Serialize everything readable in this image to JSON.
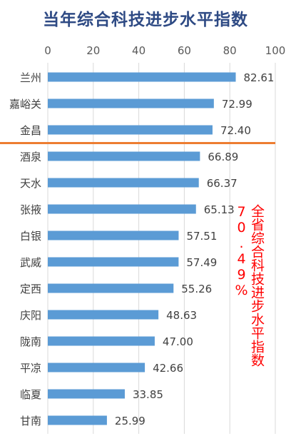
{
  "chart_data": {
    "type": "bar",
    "orientation": "horizontal",
    "title": "当年综合科技进步水平指数",
    "categories": [
      "兰州",
      "嘉峪关",
      "金昌",
      "酒泉",
      "天水",
      "张掖",
      "白银",
      "武威",
      "定西",
      "庆阳",
      "陇南",
      "平凉",
      "临夏",
      "甘南"
    ],
    "values": [
      82.61,
      72.99,
      72.4,
      66.89,
      66.37,
      65.13,
      57.51,
      57.49,
      55.26,
      48.63,
      47.0,
      42.66,
      33.85,
      25.99
    ],
    "value_labels": [
      "82.61",
      "72.99",
      "72.40",
      "66.89",
      "66.37",
      "65.13",
      "57.51",
      "57.49",
      "55.26",
      "48.63",
      "47.00",
      "42.66",
      "33.85",
      "25.99"
    ],
    "xlim": [
      0,
      100
    ],
    "xticks": [
      "0",
      "20",
      "40",
      "60",
      "80",
      "100"
    ],
    "axis_position": "top",
    "grid": true,
    "bar_color": "#5b9bd5",
    "reference_line": {
      "after_category_index": 2,
      "color": "#ed7d31"
    },
    "annotation": "全省综合科技进步水平指数70.49%",
    "annotation_color": "#ff0000"
  }
}
